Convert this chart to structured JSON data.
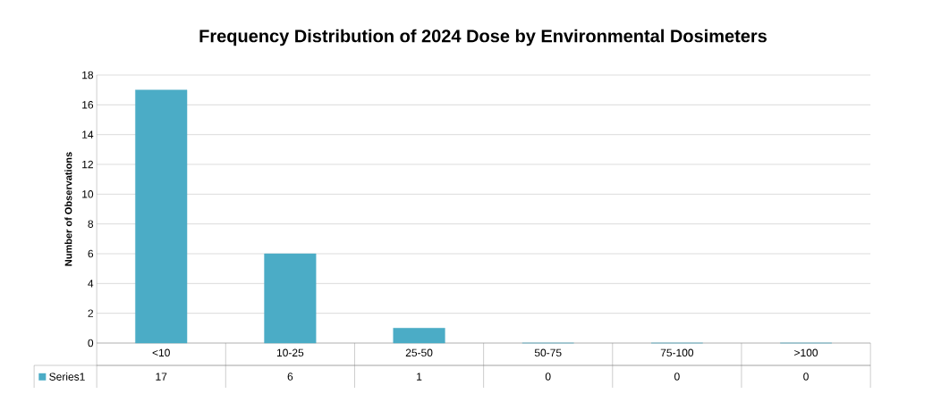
{
  "chart_data": {
    "type": "bar",
    "title": "Frequency Distribution of 2024 Dose by Environmental Dosimeters",
    "ylabel": "Number of Observations",
    "categories": [
      "<10",
      "10-25",
      "25-50",
      "50-75",
      "75-100",
      ">100"
    ],
    "series": [
      {
        "name": "Series1",
        "color": "#4bacc6",
        "values": [
          17,
          6,
          1,
          0,
          0,
          0
        ]
      }
    ],
    "ylim": [
      0,
      18
    ],
    "yticks": [
      0,
      2,
      4,
      6,
      8,
      10,
      12,
      14,
      16,
      18
    ],
    "grid": "y",
    "data_labels": true,
    "legend": "bottom left"
  }
}
